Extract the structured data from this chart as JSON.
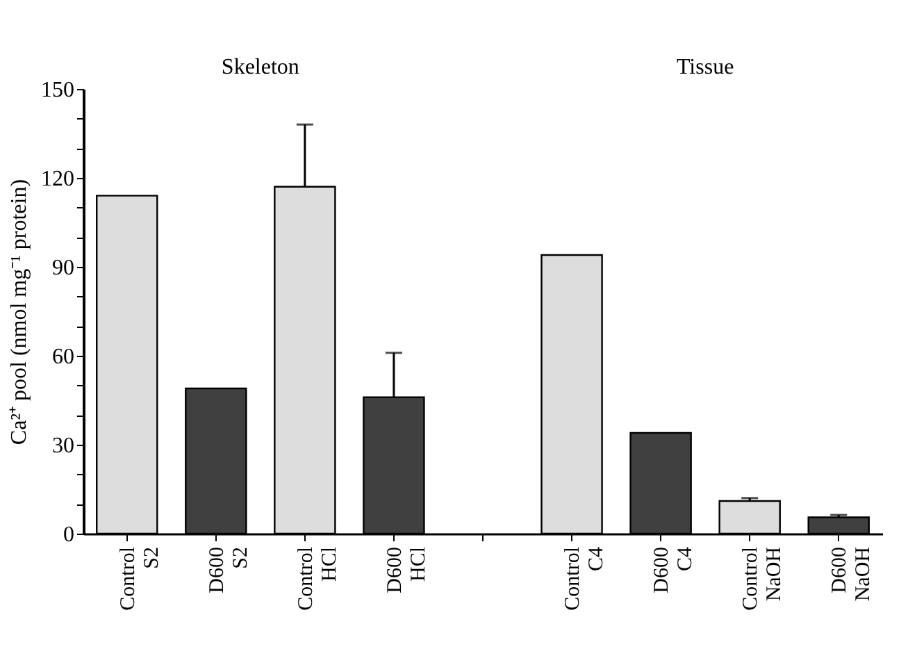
{
  "chart_data": {
    "type": "bar",
    "categories": [
      "Control\nS2",
      "D600\nS2",
      "Control\nHCl",
      "D600\nHCl",
      null,
      "Control\nC4",
      "D600\nC4",
      "Control\nNaOH",
      "D600\nNaOH"
    ],
    "values": [
      114,
      49,
      117,
      46,
      null,
      94,
      34,
      11,
      5.5
    ],
    "colors": [
      "#dddddd",
      "#404040",
      "#dddddd",
      "#404040",
      null,
      "#dddddd",
      "#404040",
      "#dddddd",
      "#404040"
    ],
    "errors": [
      null,
      null,
      [
        117,
        138
      ],
      [
        46,
        61
      ],
      null,
      null,
      null,
      [
        11,
        12
      ],
      [
        5.5,
        6.3
      ]
    ],
    "ylabel": "Ca²⁺ pool (nmol mg⁻¹ protein)",
    "ylim": [
      0,
      150
    ],
    "yticks": [
      0,
      {
        "value": 10,
        "label": null
      },
      {
        "value": 20,
        "label": null
      },
      30,
      {
        "value": 40,
        "label": null
      },
      {
        "value": 50,
        "label": null
      },
      60,
      {
        "value": 70,
        "label": null
      },
      {
        "value": 80,
        "label": null
      },
      90,
      {
        "value": 100,
        "label": null
      },
      {
        "value": 110,
        "label": null
      },
      120,
      {
        "value": 130,
        "label": null
      },
      {
        "value": 140,
        "label": null
      },
      150
    ],
    "annotations": [
      "Skeleton",
      "Tissue"
    ],
    "grid": false
  }
}
